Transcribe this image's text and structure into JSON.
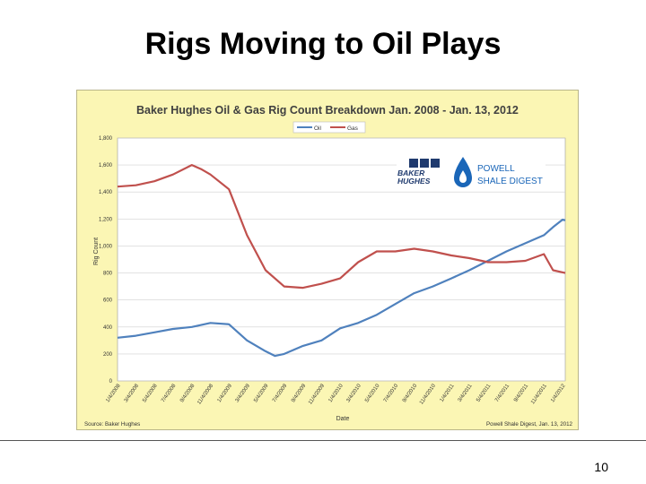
{
  "slide": {
    "title": "Rigs Moving to Oil Plays",
    "page_number": "10"
  },
  "chart_data": {
    "type": "line",
    "title": "Baker Hughes Oil & Gas Rig Count Breakdown Jan. 2008 - Jan. 13, 2012",
    "xlabel": "Date",
    "ylabel": "Rig Count",
    "ylim": [
      0,
      1800
    ],
    "yticks": [
      0,
      200,
      400,
      600,
      800,
      1000,
      1200,
      1400,
      1600,
      1800
    ],
    "ytick_labels": [
      "0",
      "200",
      "400",
      "600",
      "800",
      "1,000",
      "1,200",
      "1,400",
      "1,600",
      "1,800"
    ],
    "xlim": [
      "2008-01-04",
      "2012-01-13"
    ],
    "xticks": [
      "1/4/2008",
      "3/4/2008",
      "5/4/2008",
      "7/4/2008",
      "9/4/2008",
      "11/4/2008",
      "1/4/2009",
      "3/4/2009",
      "5/4/2009",
      "7/4/2009",
      "9/4/2009",
      "11/4/2009",
      "1/4/2010",
      "3/4/2010",
      "5/4/2010",
      "7/4/2010",
      "9/4/2010",
      "11/4/2010",
      "1/4/2011",
      "3/4/2011",
      "5/4/2011",
      "7/4/2011",
      "9/4/2011",
      "11/4/2011",
      "1/4/2012"
    ],
    "grid": true,
    "legend_position": "top-center",
    "series": [
      {
        "name": "Oil",
        "color": "#4f81bd",
        "points": [
          [
            "2008-01-04",
            320
          ],
          [
            "2008-03-04",
            335
          ],
          [
            "2008-05-04",
            360
          ],
          [
            "2008-07-04",
            385
          ],
          [
            "2008-09-04",
            400
          ],
          [
            "2008-11-04",
            430
          ],
          [
            "2009-01-04",
            420
          ],
          [
            "2009-03-04",
            300
          ],
          [
            "2009-05-04",
            220
          ],
          [
            "2009-06-04",
            185
          ],
          [
            "2009-07-04",
            200
          ],
          [
            "2009-09-04",
            260
          ],
          [
            "2009-11-04",
            300
          ],
          [
            "2010-01-04",
            390
          ],
          [
            "2010-03-04",
            430
          ],
          [
            "2010-05-04",
            490
          ],
          [
            "2010-07-04",
            570
          ],
          [
            "2010-09-04",
            650
          ],
          [
            "2010-11-04",
            700
          ],
          [
            "2011-01-04",
            760
          ],
          [
            "2011-03-04",
            820
          ],
          [
            "2011-05-04",
            890
          ],
          [
            "2011-07-04",
            960
          ],
          [
            "2011-09-04",
            1020
          ],
          [
            "2011-11-04",
            1080
          ],
          [
            "2011-12-04",
            1140
          ],
          [
            "2012-01-04",
            1195
          ],
          [
            "2012-01-13",
            1190
          ]
        ]
      },
      {
        "name": "Gas",
        "color": "#c0504d",
        "points": [
          [
            "2008-01-04",
            1440
          ],
          [
            "2008-03-04",
            1450
          ],
          [
            "2008-05-04",
            1480
          ],
          [
            "2008-07-04",
            1530
          ],
          [
            "2008-09-04",
            1600
          ],
          [
            "2008-10-04",
            1570
          ],
          [
            "2008-11-04",
            1530
          ],
          [
            "2009-01-04",
            1420
          ],
          [
            "2009-03-04",
            1080
          ],
          [
            "2009-05-04",
            820
          ],
          [
            "2009-07-04",
            700
          ],
          [
            "2009-09-04",
            690
          ],
          [
            "2009-11-04",
            720
          ],
          [
            "2010-01-04",
            760
          ],
          [
            "2010-03-04",
            880
          ],
          [
            "2010-05-04",
            960
          ],
          [
            "2010-07-04",
            960
          ],
          [
            "2010-09-04",
            980
          ],
          [
            "2010-11-04",
            960
          ],
          [
            "2011-01-04",
            930
          ],
          [
            "2011-03-04",
            910
          ],
          [
            "2011-05-04",
            880
          ],
          [
            "2011-07-04",
            880
          ],
          [
            "2011-09-04",
            890
          ],
          [
            "2011-11-04",
            940
          ],
          [
            "2011-12-04",
            820
          ],
          [
            "2012-01-13",
            800
          ]
        ]
      }
    ],
    "source_note": "Source: Baker Hughes",
    "credit_note": "Powell Shale Digest, Jan. 13, 2012",
    "logo_baker_line1": "BAKER",
    "logo_baker_line2": "HUGHES",
    "logo_powell_line1": "POWELL",
    "logo_powell_line2": "SHALE DIGEST"
  }
}
